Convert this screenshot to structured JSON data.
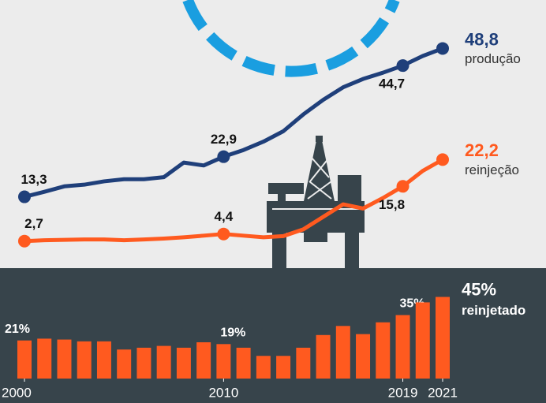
{
  "chart_data": [
    {
      "type": "line",
      "x": [
        2000,
        2001,
        2002,
        2003,
        2004,
        2005,
        2006,
        2007,
        2008,
        2009,
        2010,
        2011,
        2012,
        2013,
        2014,
        2015,
        2016,
        2017,
        2018,
        2019,
        2020,
        2021
      ],
      "xlim": [
        2000,
        2021
      ],
      "ylim": [
        0,
        60.4
      ],
      "series": [
        {
          "name": "produção",
          "color": "#1f3f7a",
          "values": [
            13.3,
            14.5,
            15.8,
            16.2,
            17,
            17.5,
            17.5,
            18,
            21.5,
            20.8,
            22.9,
            24.5,
            26.5,
            29,
            33,
            36.5,
            39.5,
            41.5,
            43,
            44.7,
            47,
            48.8
          ],
          "value_labels": [
            "13,3",
            null,
            null,
            null,
            null,
            null,
            null,
            null,
            null,
            null,
            "22,9",
            null,
            null,
            null,
            null,
            null,
            null,
            null,
            null,
            "44,7",
            null,
            "48,8"
          ]
        },
        {
          "name": "reinjeção",
          "color": "#ff5a1f",
          "values": [
            2.7,
            2.9,
            3.0,
            3.1,
            3.1,
            2.9,
            3.1,
            3.3,
            3.6,
            4.0,
            4.4,
            4.0,
            3.6,
            3.9,
            5.5,
            8.5,
            11.5,
            10.5,
            13,
            15.8,
            19.5,
            22.2
          ],
          "value_labels": [
            "2,7",
            null,
            null,
            null,
            null,
            null,
            null,
            null,
            null,
            null,
            "4,4",
            null,
            null,
            null,
            null,
            null,
            null,
            null,
            null,
            "15,8",
            null,
            "22,2"
          ]
        }
      ]
    },
    {
      "type": "bar",
      "x": [
        2000,
        2001,
        2002,
        2003,
        2004,
        2005,
        2006,
        2007,
        2008,
        2009,
        2010,
        2011,
        2012,
        2013,
        2014,
        2015,
        2016,
        2017,
        2018,
        2019,
        2020,
        2021
      ],
      "xlim": [
        2000,
        2021
      ],
      "xticks": [
        2000,
        2010,
        2019,
        2021
      ],
      "ylim": [
        0,
        60
      ],
      "color": "#ff5a1f",
      "values": [
        21,
        22,
        21.5,
        20.5,
        20.5,
        16,
        17,
        18,
        17,
        20,
        19,
        17,
        12.5,
        12.5,
        17,
        24,
        29,
        24.5,
        31,
        35,
        42,
        45
      ],
      "value_labels": [
        "21%",
        null,
        null,
        null,
        null,
        null,
        null,
        null,
        null,
        null,
        "19%",
        null,
        null,
        null,
        null,
        null,
        null,
        null,
        null,
        "35%",
        null,
        "45%"
      ],
      "annotation": "reinjetado"
    }
  ]
}
